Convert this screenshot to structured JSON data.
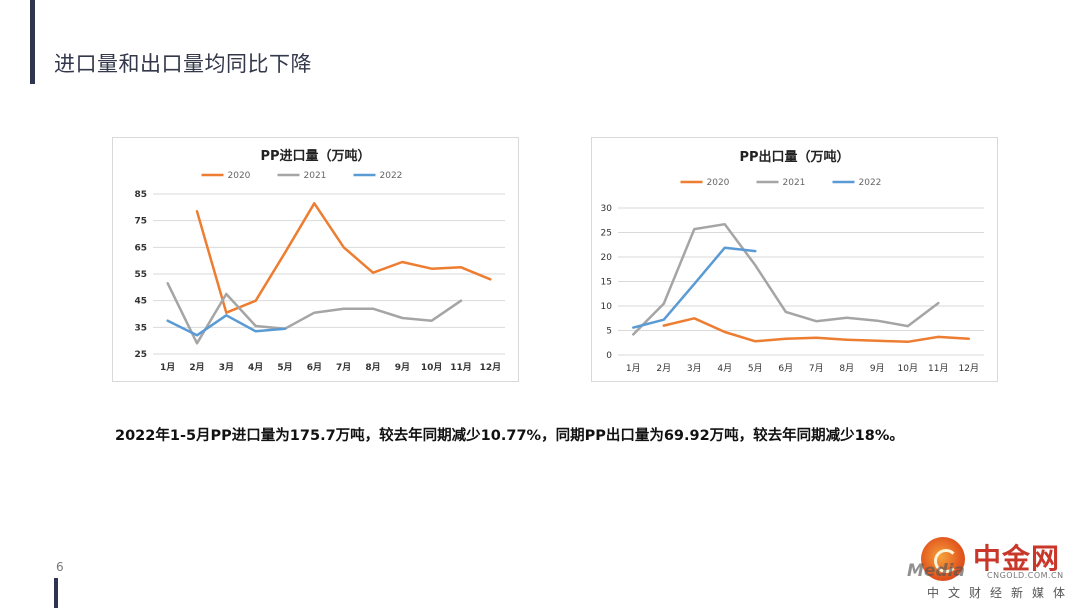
{
  "slide": {
    "title": "进口量和出口量均同比下降",
    "summary": "2022年1-5月PP进口量为175.7万吨，较去年同期减少10.77%，同期PP出口量为69.92万吨，较去年同期减少18%。",
    "page_number": "6"
  },
  "watermark": {
    "brand": "中金网",
    "site": "CNGOLD.COM.CN",
    "tagline": "中文财经新媒体",
    "script": "Media"
  },
  "chart_data": [
    {
      "type": "line",
      "title": "PP进口量（万吨）",
      "categories": [
        "1月",
        "2月",
        "3月",
        "4月",
        "5月",
        "6月",
        "7月",
        "8月",
        "9月",
        "10月",
        "11月",
        "12月"
      ],
      "series": [
        {
          "name": "2020",
          "color": "#ed7d31",
          "values": [
            null,
            78.5,
            40.5,
            45,
            63,
            81.5,
            65,
            55.5,
            59.5,
            57,
            57.5,
            53
          ]
        },
        {
          "name": "2021",
          "color": "#a5a5a5",
          "values": [
            51.5,
            29,
            47.5,
            35.5,
            34.5,
            40.5,
            42,
            42,
            38.5,
            37.5,
            45,
            null
          ]
        },
        {
          "name": "2022",
          "color": "#5b9bd5",
          "values": [
            37.5,
            32,
            39.5,
            33.5,
            34.5,
            null,
            null,
            null,
            null,
            null,
            null,
            null
          ]
        }
      ],
      "ylim": [
        25,
        85
      ],
      "yticks": [
        25,
        35,
        45,
        55,
        65,
        75,
        85
      ],
      "grid": true,
      "legend": "top"
    },
    {
      "type": "line",
      "title": "PP出口量（万吨）",
      "categories": [
        "1月",
        "2月",
        "3月",
        "4月",
        "5月",
        "6月",
        "7月",
        "8月",
        "9月",
        "10月",
        "11月",
        "12月"
      ],
      "series": [
        {
          "name": "2020",
          "color": "#ed7d31",
          "values": [
            null,
            6,
            7.5,
            4.7,
            2.8,
            3.3,
            3.5,
            3.1,
            2.9,
            2.7,
            3.7,
            3.3
          ]
        },
        {
          "name": "2021",
          "color": "#a5a5a5",
          "values": [
            4.2,
            10.5,
            25.7,
            26.7,
            18.3,
            8.8,
            6.9,
            7.6,
            7,
            5.9,
            10.6,
            null
          ]
        },
        {
          "name": "2022",
          "color": "#5b9bd5",
          "values": [
            5.6,
            7.2,
            14.5,
            21.9,
            21.2,
            null,
            null,
            null,
            null,
            null,
            null,
            null
          ]
        }
      ],
      "ylim": [
        0,
        30
      ],
      "yticks": [
        0,
        5,
        10,
        15,
        20,
        25,
        30
      ],
      "grid": true,
      "legend": "top"
    }
  ]
}
